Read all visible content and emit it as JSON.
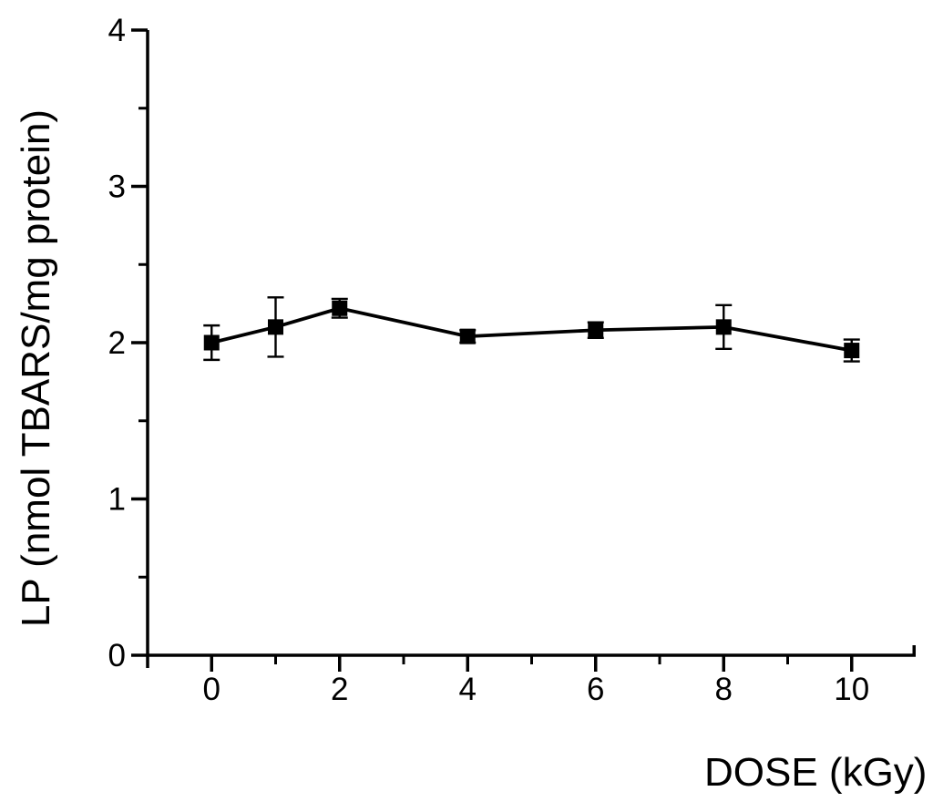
{
  "figure": {
    "background_color": "#ffffff",
    "ink_color": "#000000"
  },
  "chart_data": {
    "type": "line",
    "title": "",
    "xlabel": "DOSE (kGy)",
    "ylabel": "LP (nmol TBARS/mg protein)",
    "x": [
      0,
      1,
      2,
      4,
      6,
      8,
      10
    ],
    "series": [
      {
        "name": "LP",
        "values": [
          2.0,
          2.1,
          2.22,
          2.04,
          2.08,
          2.1,
          1.95
        ],
        "errors": [
          0.11,
          0.19,
          0.06,
          0.04,
          0.05,
          0.14,
          0.07
        ]
      }
    ],
    "xlim": [
      -1,
      11
    ],
    "ylim": [
      0,
      4
    ],
    "x_major_ticks": [
      0,
      2,
      4,
      6,
      8,
      10
    ],
    "x_minor_ticks": [
      1,
      3,
      5,
      7,
      9
    ],
    "y_major_ticks": [
      0,
      1,
      2,
      3,
      4
    ],
    "y_minor_ticks": [
      0.5,
      1.5,
      2.5,
      3.5
    ],
    "x_tick_labels": [
      "0",
      "2",
      "4",
      "6",
      "8",
      "10"
    ],
    "y_tick_labels": [
      "0",
      "1",
      "2",
      "3",
      "4"
    ],
    "marker": "filled-square",
    "grid": false,
    "legend": null
  }
}
